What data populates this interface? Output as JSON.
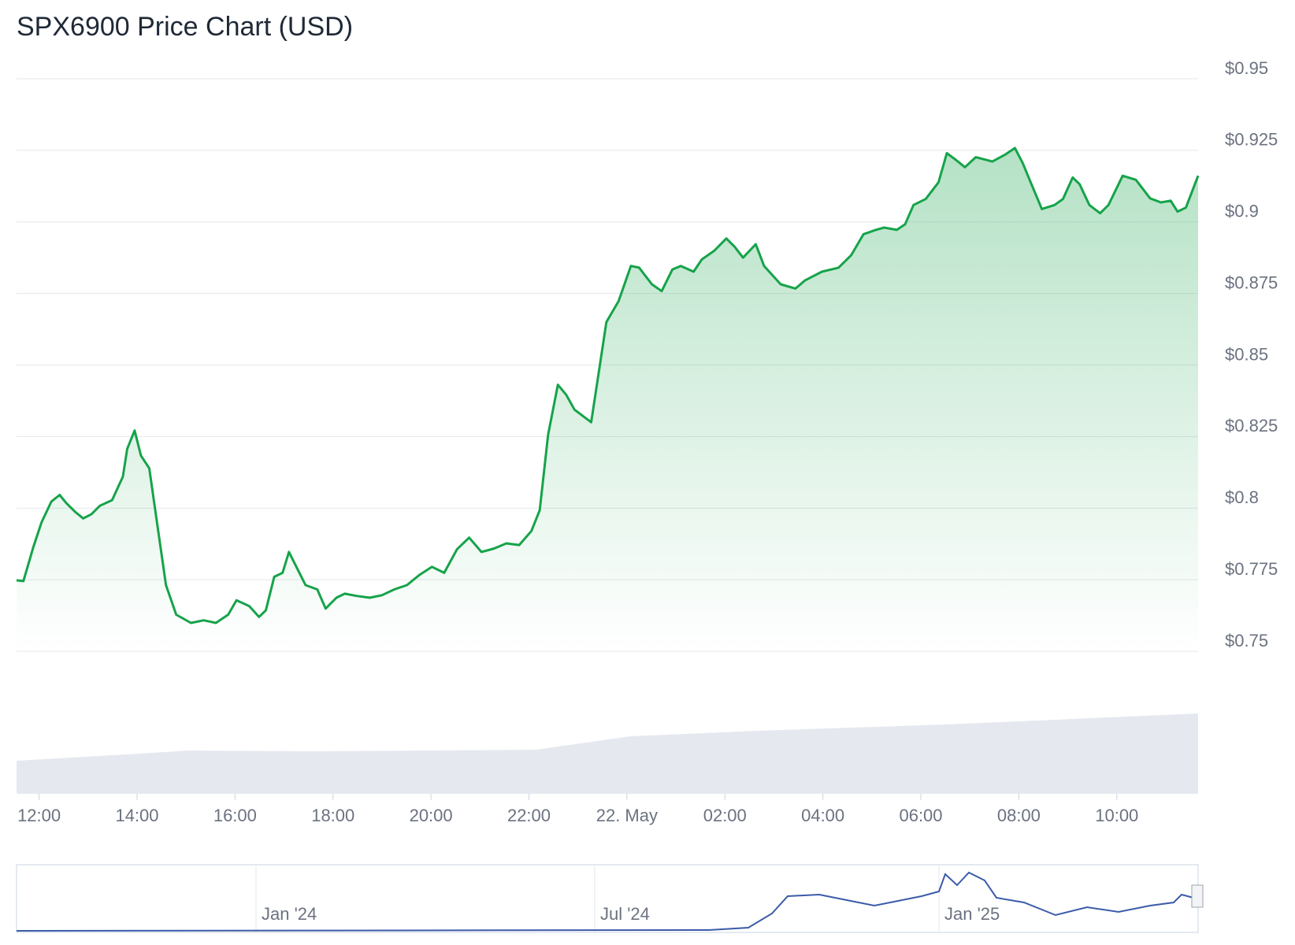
{
  "chart_data": {
    "type": "area",
    "title": "SPX6900 Price Chart (USD)",
    "x": [
      11.54,
      11.68,
      11.88,
      12.05,
      12.25,
      12.42,
      12.56,
      12.73,
      12.9,
      13.07,
      13.24,
      13.49,
      13.71,
      13.8,
      13.95,
      14.08,
      14.25,
      14.42,
      14.59,
      14.8,
      15.1,
      15.36,
      15.61,
      15.86,
      16.03,
      16.29,
      16.49,
      16.63,
      16.8,
      16.97,
      17.1,
      17.27,
      17.44,
      17.68,
      17.85,
      18.07,
      18.24,
      18.49,
      18.75,
      19.0,
      19.25,
      19.51,
      19.76,
      20.02,
      20.27,
      20.53,
      20.78,
      21.03,
      21.29,
      21.54,
      21.8,
      22.05,
      22.22,
      22.39,
      22.59,
      22.76,
      22.93,
      23.27,
      23.44,
      23.58,
      23.83,
      24.08,
      24.25,
      24.51,
      24.71,
      24.93,
      25.1,
      25.36,
      25.53,
      25.78,
      26.03,
      26.2,
      26.37,
      26.63,
      26.8,
      27.14,
      27.44,
      27.64,
      27.98,
      28.32,
      28.58,
      28.83,
      29.08,
      29.25,
      29.51,
      29.68,
      29.85,
      30.1,
      30.36,
      30.53,
      30.69,
      30.9,
      31.12,
      31.46,
      31.71,
      31.92,
      32.08,
      32.22,
      32.47,
      32.73,
      32.9,
      33.1,
      33.24,
      33.44,
      33.66,
      33.83,
      34.12,
      34.39,
      34.68,
      34.9,
      35.1,
      35.24,
      35.41,
      35.66
    ],
    "series": [
      {
        "name": "Price",
        "color": "#16a34a",
        "values": [
          0.7748,
          0.7745,
          0.7862,
          0.795,
          0.8023,
          0.8046,
          0.8017,
          0.7988,
          0.7964,
          0.7979,
          0.8008,
          0.8028,
          0.811,
          0.8207,
          0.8271,
          0.8183,
          0.8139,
          0.7935,
          0.7731,
          0.7628,
          0.7599,
          0.7608,
          0.7599,
          0.7628,
          0.7678,
          0.7658,
          0.762,
          0.7643,
          0.776,
          0.7774,
          0.7847,
          0.7789,
          0.7731,
          0.7716,
          0.7649,
          0.7687,
          0.7701,
          0.7693,
          0.7687,
          0.7696,
          0.7716,
          0.7731,
          0.7766,
          0.7795,
          0.7774,
          0.7856,
          0.7897,
          0.7847,
          0.7859,
          0.7877,
          0.7871,
          0.792,
          0.7993,
          0.8256,
          0.8431,
          0.8396,
          0.8344,
          0.83,
          0.849,
          0.865,
          0.8723,
          0.8846,
          0.884,
          0.8782,
          0.8758,
          0.8834,
          0.8846,
          0.8826,
          0.8869,
          0.8899,
          0.8942,
          0.8913,
          0.8875,
          0.8922,
          0.8846,
          0.8782,
          0.8767,
          0.8796,
          0.8826,
          0.884,
          0.8884,
          0.8957,
          0.8972,
          0.898,
          0.8972,
          0.8992,
          0.9059,
          0.908,
          0.9138,
          0.924,
          0.922,
          0.9191,
          0.9226,
          0.9211,
          0.9234,
          0.9258,
          0.9205,
          0.9147,
          0.9045,
          0.9059,
          0.908,
          0.9155,
          0.9132,
          0.9059,
          0.903,
          0.9059,
          0.9161,
          0.9147,
          0.9082,
          0.9068,
          0.9074,
          0.9036,
          0.905,
          0.9161
        ]
      }
    ],
    "xlim": [
      11.54,
      35.66
    ],
    "xticks": [
      {
        "value": 12,
        "label": "12:00"
      },
      {
        "value": 14,
        "label": "14:00"
      },
      {
        "value": 16,
        "label": "16:00"
      },
      {
        "value": 18,
        "label": "18:00"
      },
      {
        "value": 20,
        "label": "20:00"
      },
      {
        "value": 22,
        "label": "22:00"
      },
      {
        "value": 24,
        "label": "22. May"
      },
      {
        "value": 26,
        "label": "02:00"
      },
      {
        "value": 28,
        "label": "04:00"
      },
      {
        "value": 30,
        "label": "06:00"
      },
      {
        "value": 32,
        "label": "08:00"
      },
      {
        "value": 34,
        "label": "10:00"
      }
    ],
    "ylim": [
      0.75,
      0.95
    ],
    "yticks": [
      {
        "value": 0.75,
        "label": "$0.75"
      },
      {
        "value": 0.775,
        "label": "$0.775"
      },
      {
        "value": 0.8,
        "label": "$0.8"
      },
      {
        "value": 0.825,
        "label": "$0.825"
      },
      {
        "value": 0.85,
        "label": "$0.85"
      },
      {
        "value": 0.875,
        "label": "$0.875"
      },
      {
        "value": 0.9,
        "label": "$0.9"
      },
      {
        "value": 0.925,
        "label": "$0.925"
      },
      {
        "value": 0.95,
        "label": "$0.95"
      }
    ],
    "grid": true
  },
  "navigator": {
    "labels": [
      "Jan '24",
      "Jul '24",
      "Jan '25"
    ]
  }
}
